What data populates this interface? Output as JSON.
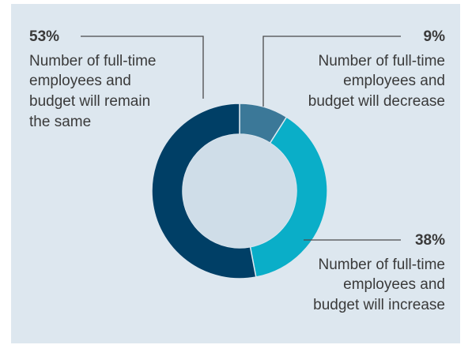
{
  "chart_data": {
    "type": "pie",
    "donut": true,
    "slices": [
      {
        "label_lines": [
          "Number of full-time",
          "employees and",
          "budget will decrease"
        ],
        "value": 9,
        "pct_label": "9%",
        "color": "#3b7898"
      },
      {
        "label_lines": [
          "Number of full-time",
          "employees and",
          "budget will increase"
        ],
        "value": 38,
        "pct_label": "38%",
        "color": "#0aaec8"
      },
      {
        "label_lines": [
          "Number of full-time",
          "employees and",
          "budget will remain",
          "the same"
        ],
        "value": 53,
        "pct_label": "53%",
        "color": "#003f66"
      }
    ]
  },
  "colors": {
    "background": "#dde7ef",
    "donut_hole": "#cfdde8",
    "leader_line": "#4a4a4a",
    "text": "#3a3a3a"
  }
}
